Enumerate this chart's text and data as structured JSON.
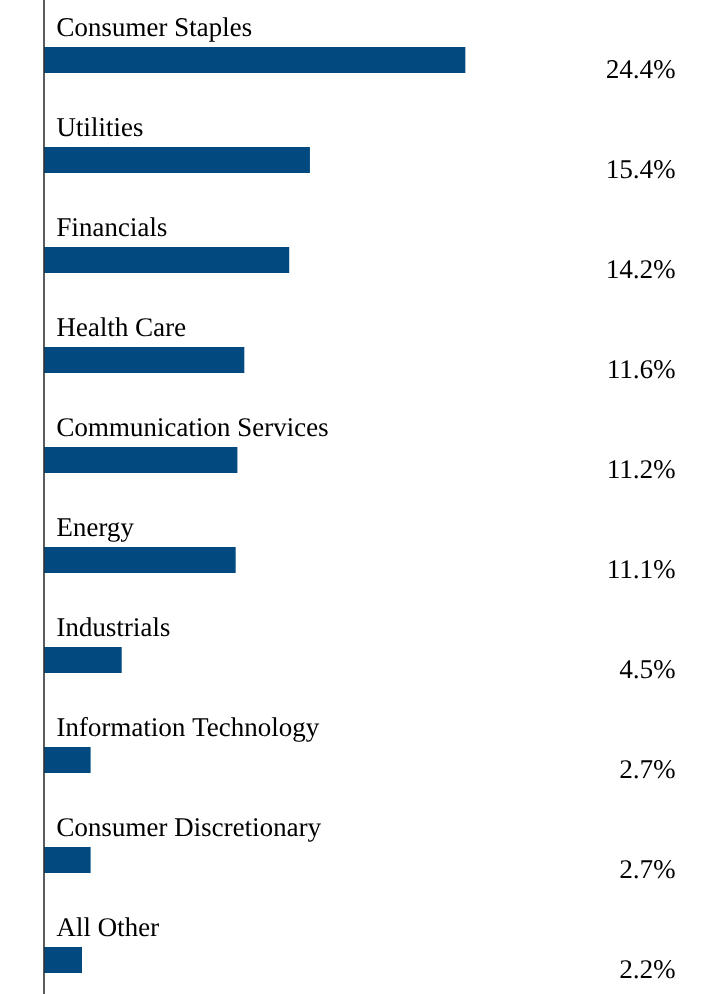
{
  "chart_data": {
    "type": "bar",
    "orientation": "horizontal",
    "categories": [
      "Consumer Staples",
      "Utilities",
      "Financials",
      "Health Care",
      "Communication Services",
      "Energy",
      "Industrials",
      "Information Technology",
      "Consumer Discretionary",
      "All Other"
    ],
    "values": [
      24.4,
      15.4,
      14.2,
      11.6,
      11.2,
      11.1,
      4.5,
      2.7,
      2.7,
      2.2
    ],
    "value_labels": [
      "24.4%",
      "15.4%",
      "14.2%",
      "11.6%",
      "11.2%",
      "11.1%",
      "4.5%",
      "2.7%",
      "2.7%",
      "2.2%"
    ],
    "color": "#004a80"
  }
}
